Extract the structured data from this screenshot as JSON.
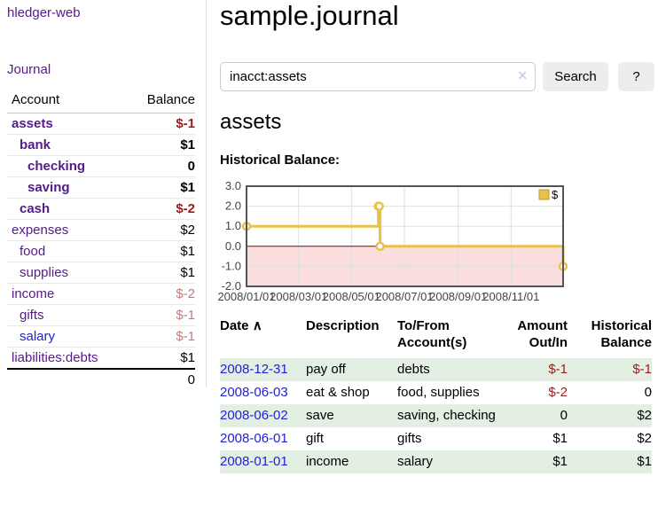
{
  "app": {
    "title": "hledger-web",
    "nav_journal": "Journal"
  },
  "colors": {
    "link_purple": "#551a8b",
    "link_blue": "#2220dd",
    "negative_strong": "#9b1c1c",
    "negative_soft": "#bf7b7b",
    "row_stripe_green": "#e3efe3",
    "button_gray": "#ededed"
  },
  "sidebar": {
    "columns": {
      "account": "Account",
      "balance": "Balance"
    },
    "accounts": [
      {
        "name": "assets",
        "indent": 1,
        "bold": true,
        "balance": "$-1",
        "balance_style": "neg-strong"
      },
      {
        "name": "bank",
        "indent": 2,
        "bold": true,
        "balance": "$1",
        "balance_style": ""
      },
      {
        "name": "checking",
        "indent": 3,
        "bold": true,
        "balance": "0",
        "balance_style": ""
      },
      {
        "name": "saving",
        "indent": 3,
        "bold": true,
        "balance": "$1",
        "balance_style": ""
      },
      {
        "name": "cash",
        "indent": 2,
        "bold": true,
        "balance": "$-2",
        "balance_style": "neg-strong"
      },
      {
        "name": "expenses",
        "indent": 1,
        "bold": false,
        "balance": "$2",
        "balance_style": ""
      },
      {
        "name": "food",
        "indent": 2,
        "bold": false,
        "balance": "$1",
        "balance_style": ""
      },
      {
        "name": "supplies",
        "indent": 2,
        "bold": false,
        "balance": "$1",
        "balance_style": ""
      },
      {
        "name": "income",
        "indent": 1,
        "bold": false,
        "balance": "$-2",
        "balance_style": "neg-soft"
      },
      {
        "name": "gifts",
        "indent": 2,
        "bold": false,
        "balance": "$-1",
        "balance_style": "neg-soft"
      },
      {
        "name": "salary",
        "indent": 2,
        "bold": false,
        "link_style": "blue",
        "balance": "$-1",
        "balance_style": "neg-soft"
      },
      {
        "name": "liabilities:debts",
        "indent": 1,
        "bold": false,
        "balance": "$1",
        "balance_style": ""
      }
    ],
    "total": "0"
  },
  "header": {
    "title": "sample.journal"
  },
  "search": {
    "value": "inacct:assets",
    "clear_icon": "✕",
    "button": "Search",
    "help_button": "?"
  },
  "account_page": {
    "heading": "assets",
    "chart_label": "Historical Balance:"
  },
  "chart_data": {
    "type": "line",
    "step": true,
    "title": "Historical Balance:",
    "series": [
      {
        "name": "$",
        "color": "#e8c14a",
        "points": [
          [
            "2008/01/01",
            1
          ],
          [
            "2008/06/01",
            2
          ],
          [
            "2008/06/02",
            2
          ],
          [
            "2008/06/03",
            0
          ],
          [
            "2008/12/31",
            -1
          ]
        ]
      }
    ],
    "ylim": [
      -2,
      3
    ],
    "yticks": [
      3.0,
      2.0,
      1.0,
      0.0,
      -1.0,
      -2.0
    ],
    "xticks": [
      "2008/01/01",
      "2008/03/01",
      "2008/05/01",
      "2008/07/01",
      "2008/09/01",
      "2008/11/01"
    ],
    "xrange": [
      "2008/01/01",
      "2008/12/31"
    ],
    "grid": true,
    "legend": [
      "$"
    ],
    "legend_position": "top-right",
    "negative_region_color": "#fadddd",
    "zero_line_color": "#8b0000",
    "border_color": "#545454",
    "grid_color": "#e0e0e0"
  },
  "register": {
    "columns": {
      "date": "Date",
      "sort_icon": "∧",
      "description": "Description",
      "accounts": "To/From Account(s)",
      "amount": "Amount Out/In",
      "balance": "Historical Balance"
    },
    "rows": [
      {
        "date": "2008-12-31",
        "description": "pay off",
        "accounts": "debts",
        "amount": "$-1",
        "balance": "$-1"
      },
      {
        "date": "2008-06-03",
        "description": "eat & shop",
        "accounts": "food, supplies",
        "amount": "$-2",
        "balance": "0"
      },
      {
        "date": "2008-06-02",
        "description": "save",
        "accounts": "saving, checking",
        "amount": "0",
        "balance": "$2"
      },
      {
        "date": "2008-06-01",
        "description": "gift",
        "accounts": "gifts",
        "amount": "$1",
        "balance": "$2"
      },
      {
        "date": "2008-01-01",
        "description": "income",
        "accounts": "salary",
        "amount": "$1",
        "balance": "$1"
      }
    ]
  }
}
